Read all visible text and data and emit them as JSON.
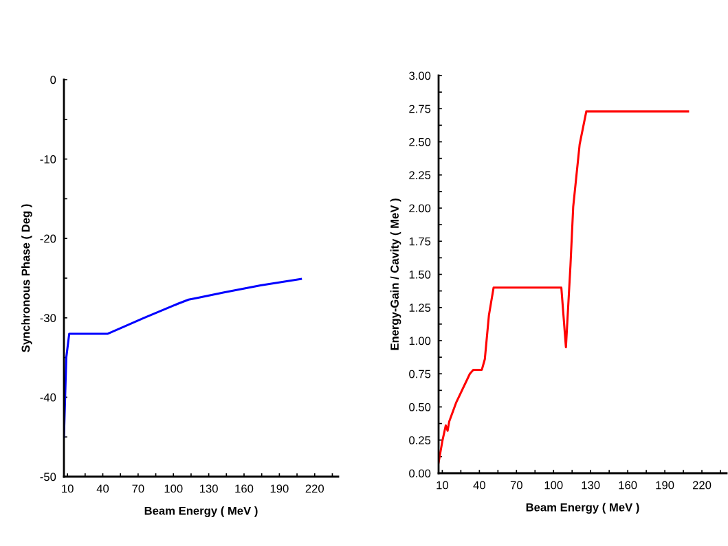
{
  "chart_data": [
    {
      "type": "line",
      "xlabel": "Beam Energy ( MeV )",
      "ylabel": "Synchronous Phase ( Deg )",
      "xlim": [
        7,
        240
      ],
      "ylim": [
        -50,
        0
      ],
      "xticks": [
        10,
        {
          "value": 25,
          "label": null
        },
        40,
        {
          "value": 55,
          "label": null
        },
        70,
        {
          "value": 85,
          "label": null
        },
        100,
        {
          "value": 115,
          "label": null
        },
        130,
        {
          "value": 145,
          "label": null
        },
        160,
        {
          "value": 175,
          "label": null
        },
        190,
        {
          "value": 205,
          "label": null
        },
        220,
        {
          "value": 235,
          "label": null
        }
      ],
      "yticks": [
        -50,
        {
          "value": -45,
          "label": null
        },
        -40,
        {
          "value": -35,
          "label": null
        },
        -30,
        {
          "value": -25,
          "label": null
        },
        -20,
        {
          "value": -15,
          "label": null
        },
        -10,
        {
          "value": -5,
          "label": null
        },
        0
      ],
      "series": [
        {
          "color": "#0000ff",
          "x": [
            7,
            9,
            11.5,
            44.3,
            56.7,
            75,
            104.2,
            112.9,
            119.7,
            143,
            174,
            208.3
          ],
          "values": [
            -45,
            -35,
            -32,
            -32,
            -31.2,
            -30,
            -28.2,
            -27.7,
            -27.5,
            -26.8,
            -25.9,
            -25.1
          ]
        }
      ]
    },
    {
      "type": "line",
      "xlabel": "Beam Energy ( MeV )",
      "ylabel": "Energy-Gain / Cavity ( MeV )",
      "xlim": [
        7,
        240
      ],
      "ylim": [
        0,
        3
      ],
      "xticks": [
        10,
        {
          "value": 25,
          "label": null
        },
        40,
        {
          "value": 55,
          "label": null
        },
        70,
        {
          "value": 85,
          "label": null
        },
        100,
        {
          "value": 115,
          "label": null
        },
        130,
        {
          "value": 145,
          "label": null
        },
        160,
        {
          "value": 175,
          "label": null
        },
        190,
        {
          "value": 205,
          "label": null
        },
        220,
        {
          "value": 235,
          "label": null
        }
      ],
      "yticks": [
        {
          "value": 0,
          "label": "0.00"
        },
        {
          "value": 0.125,
          "label": null
        },
        {
          "value": 0.25,
          "label": "0.25"
        },
        {
          "value": 0.375,
          "label": null
        },
        {
          "value": 0.5,
          "label": "0.50"
        },
        {
          "value": 0.625,
          "label": null
        },
        {
          "value": 0.75,
          "label": "0.75"
        },
        {
          "value": 0.875,
          "label": null
        },
        {
          "value": 1,
          "label": "1.00"
        },
        {
          "value": 1.125,
          "label": null
        },
        {
          "value": 1.25,
          "label": "1.25"
        },
        {
          "value": 1.375,
          "label": null
        },
        {
          "value": 1.5,
          "label": "1.50"
        },
        {
          "value": 1.625,
          "label": null
        },
        {
          "value": 1.75,
          "label": "1.75"
        },
        {
          "value": 1.875,
          "label": null
        },
        {
          "value": 2,
          "label": "2.00"
        },
        {
          "value": 2.125,
          "label": null
        },
        {
          "value": 2.25,
          "label": "2.25"
        },
        {
          "value": 2.375,
          "label": null
        },
        {
          "value": 2.5,
          "label": "2.50"
        },
        {
          "value": 2.625,
          "label": null
        },
        {
          "value": 2.75,
          "label": "2.75"
        },
        {
          "value": 2.875,
          "label": null
        },
        {
          "value": 3,
          "label": "3.00"
        }
      ],
      "series": [
        {
          "color": "#ff0000",
          "x": [
            7,
            10,
            12.8,
            14.3,
            15.6,
            21.1,
            32.3,
            35.1,
            42,
            44.4,
            47.7,
            51.5,
            106.3,
            110,
            113.7,
            115.9,
            121.1,
            126.5,
            208.8
          ],
          "values": [
            0.08,
            0.24,
            0.36,
            0.32,
            0.39,
            0.53,
            0.75,
            0.78,
            0.78,
            0.86,
            1.19,
            1.4,
            1.4,
            0.95,
            1.57,
            2.01,
            2.48,
            2.73,
            2.73
          ]
        }
      ]
    }
  ]
}
